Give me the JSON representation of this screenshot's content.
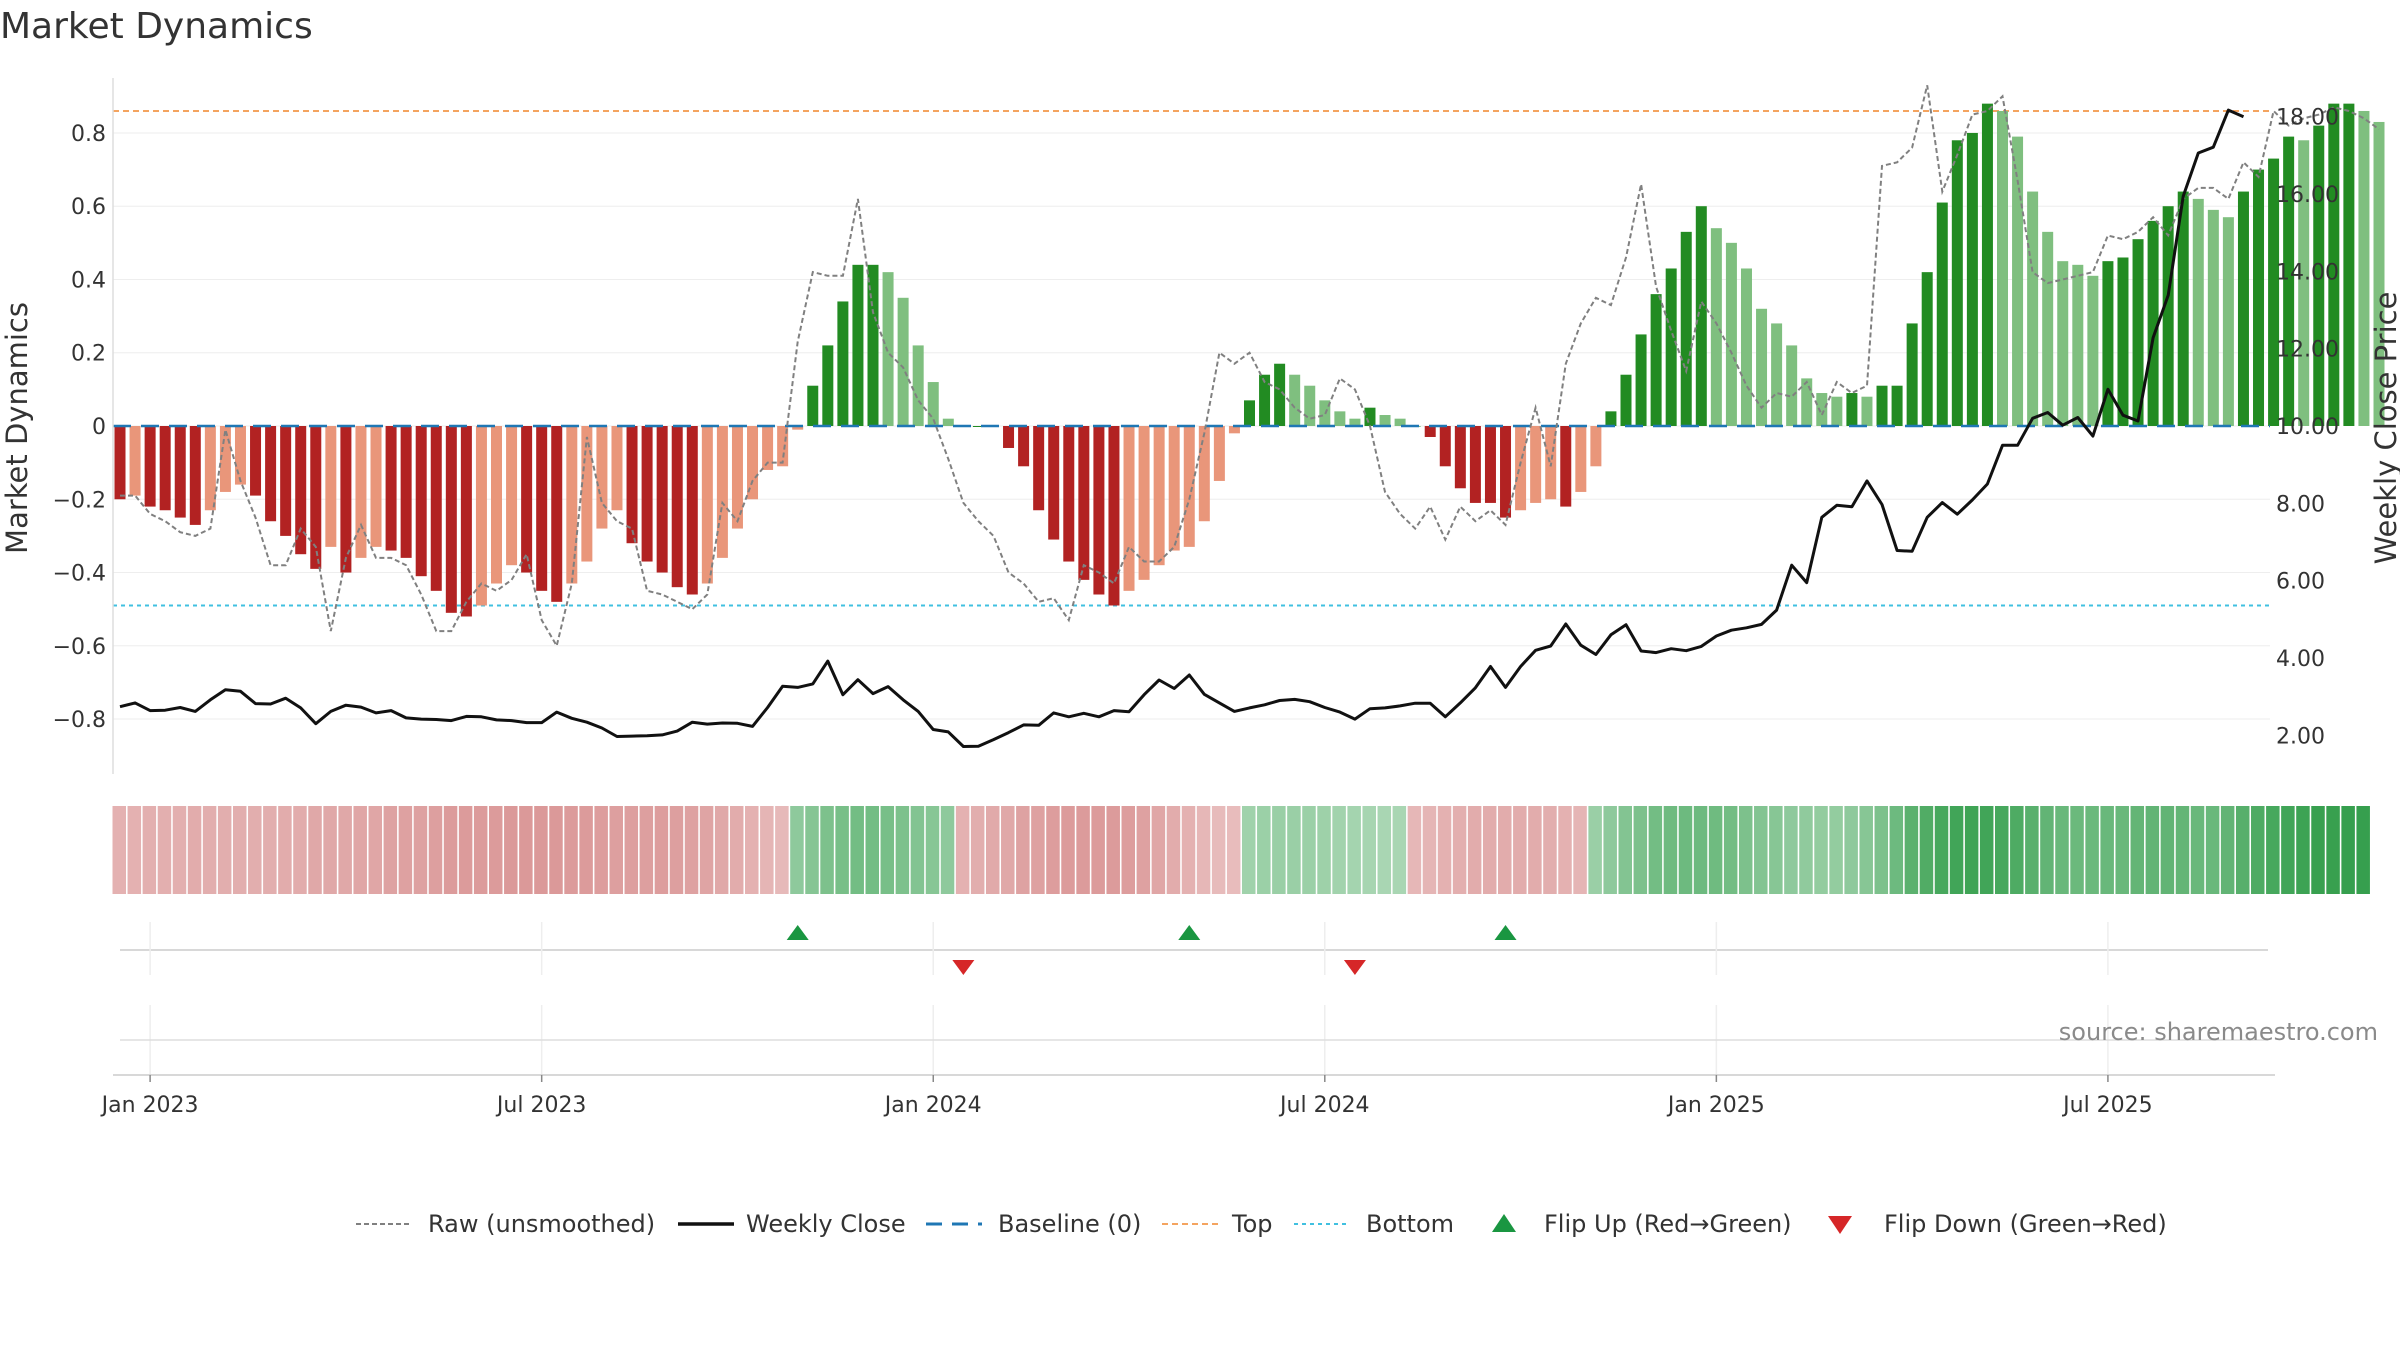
{
  "chart_data": {
    "type": "bar",
    "title": "Market Dynamics",
    "ylabel_left": "Market Dynamics",
    "ylabel_right": "Weekly Close Price",
    "ylim_left": [
      -0.95,
      0.95
    ],
    "ylim_right": [
      1.0,
      19.0
    ],
    "yticks_left": [
      {
        "v": 0.8,
        "label": "0.8"
      },
      {
        "v": 0.6,
        "label": "0.6"
      },
      {
        "v": 0.4,
        "label": "0.4"
      },
      {
        "v": 0.2,
        "label": "0.2"
      },
      {
        "v": 0.0,
        "label": "0"
      },
      {
        "v": -0.2,
        "label": "−0.2"
      },
      {
        "v": -0.4,
        "label": "−0.4"
      },
      {
        "v": -0.6,
        "label": "−0.6"
      },
      {
        "v": -0.8,
        "label": "−0.8"
      }
    ],
    "yticks_right": [
      {
        "v": 18,
        "label": "18.00"
      },
      {
        "v": 16,
        "label": "16.00"
      },
      {
        "v": 14,
        "label": "14.00"
      },
      {
        "v": 12,
        "label": "12.00"
      },
      {
        "v": 10,
        "label": "10.00"
      },
      {
        "v": 8,
        "label": "8.00"
      },
      {
        "v": 6,
        "label": "6.00"
      },
      {
        "v": 4,
        "label": "4.00"
      },
      {
        "v": 2,
        "label": "2.00"
      }
    ],
    "xticks": [
      {
        "week": 2,
        "label": "Jan 2023"
      },
      {
        "week": 28,
        "label": "Jul 2023"
      },
      {
        "week": 54,
        "label": "Jan 2024"
      },
      {
        "week": 80,
        "label": "Jul 2024"
      },
      {
        "week": 106,
        "label": "Jan 2025"
      },
      {
        "week": 132,
        "label": "Jul 2025"
      }
    ],
    "top_threshold": 0.86,
    "bottom_threshold": -0.49,
    "baseline": 0,
    "colors": {
      "strong_up": "#228B22",
      "weak_up": "#7FBF7F",
      "strong_down": "#B22222",
      "weak_down": "#E9967A",
      "raw": "#808080",
      "close": "#111111",
      "baseline": "#1f77b4",
      "top": "#f4a460",
      "bottom": "#40c0e0",
      "flip_up": "#1a9641",
      "flip_down": "#d62728"
    },
    "dynamics": [
      -0.2,
      -0.19,
      -0.22,
      -0.23,
      -0.25,
      -0.27,
      -0.23,
      -0.18,
      -0.16,
      -0.19,
      -0.26,
      -0.3,
      -0.35,
      -0.39,
      -0.33,
      -0.4,
      -0.36,
      -0.33,
      -0.34,
      -0.36,
      -0.41,
      -0.45,
      -0.51,
      -0.52,
      -0.49,
      -0.43,
      -0.38,
      -0.4,
      -0.45,
      -0.48,
      -0.43,
      -0.37,
      -0.28,
      -0.23,
      -0.32,
      -0.37,
      -0.4,
      -0.44,
      -0.46,
      -0.43,
      -0.36,
      -0.28,
      -0.2,
      -0.12,
      -0.11,
      -0.01,
      0.11,
      0.22,
      0.34,
      0.44,
      0.44,
      0.42,
      0.35,
      0.22,
      0.12,
      0.02,
      0.0,
      0.0,
      0.0,
      -0.06,
      -0.11,
      -0.23,
      -0.31,
      -0.37,
      -0.42,
      -0.46,
      -0.49,
      -0.45,
      -0.42,
      -0.38,
      -0.34,
      -0.33,
      -0.26,
      -0.15,
      -0.02,
      0.07,
      0.14,
      0.17,
      0.14,
      0.11,
      0.07,
      0.04,
      0.02,
      0.05,
      0.03,
      0.02,
      0.0,
      -0.03,
      -0.11,
      -0.17,
      -0.21,
      -0.21,
      -0.25,
      -0.23,
      -0.21,
      -0.2,
      -0.22,
      -0.18,
      -0.11,
      0.04,
      0.14,
      0.25,
      0.36,
      0.43,
      0.53,
      0.6,
      0.54,
      0.5,
      0.43,
      0.32,
      0.28,
      0.22,
      0.13,
      0.09,
      0.08,
      0.09,
      0.08,
      0.11,
      0.11,
      0.28,
      0.42,
      0.61,
      0.78,
      0.8,
      0.88,
      0.86,
      0.79,
      0.64,
      0.53,
      0.45,
      0.44,
      0.41,
      0.45,
      0.46,
      0.51,
      0.56,
      0.6,
      0.64,
      0.62,
      0.59,
      0.57,
      0.64,
      0.7,
      0.73,
      0.79,
      0.78,
      0.82,
      0.88,
      0.88,
      0.86,
      0.83
    ],
    "raw": [
      -0.19,
      -0.19,
      -0.24,
      -0.26,
      -0.29,
      -0.3,
      -0.28,
      -0.01,
      -0.15,
      -0.25,
      -0.38,
      -0.38,
      -0.28,
      -0.33,
      -0.56,
      -0.36,
      -0.27,
      -0.36,
      -0.36,
      -0.38,
      -0.46,
      -0.56,
      -0.56,
      -0.48,
      -0.43,
      -0.45,
      -0.42,
      -0.35,
      -0.53,
      -0.6,
      -0.43,
      -0.03,
      -0.21,
      -0.26,
      -0.28,
      -0.45,
      -0.46,
      -0.48,
      -0.5,
      -0.46,
      -0.21,
      -0.26,
      -0.15,
      -0.1,
      -0.1,
      0.23,
      0.42,
      0.41,
      0.41,
      0.62,
      0.31,
      0.2,
      0.16,
      0.07,
      0.02,
      -0.09,
      -0.21,
      -0.26,
      -0.3,
      -0.4,
      -0.43,
      -0.48,
      -0.47,
      -0.53,
      -0.38,
      -0.4,
      -0.43,
      -0.33,
      -0.37,
      -0.37,
      -0.33,
      -0.2,
      -0.02,
      0.2,
      0.17,
      0.2,
      0.12,
      0.1,
      0.05,
      0.02,
      0.03,
      0.13,
      0.1,
      0.0,
      -0.18,
      -0.24,
      -0.28,
      -0.22,
      -0.31,
      -0.22,
      -0.26,
      -0.23,
      -0.27,
      -0.1,
      0.05,
      -0.11,
      0.17,
      0.28,
      0.35,
      0.33,
      0.46,
      0.66,
      0.38,
      0.26,
      0.15,
      0.34,
      0.28,
      0.2,
      0.11,
      0.05,
      0.09,
      0.08,
      0.12,
      0.03,
      0.12,
      0.09,
      0.11,
      0.71,
      0.72,
      0.76,
      0.93,
      0.64,
      0.74,
      0.85,
      0.86,
      0.9,
      0.67,
      0.42,
      0.39,
      0.4,
      0.41,
      0.42,
      0.52,
      0.51,
      0.53,
      0.57,
      0.52,
      0.62,
      0.65,
      0.65,
      0.62,
      0.72,
      0.68,
      0.86,
      0.82,
      0.84,
      0.85,
      0.87,
      0.86,
      0.84,
      0.81
    ],
    "close": [
      2.74,
      2.84,
      2.64,
      2.65,
      2.72,
      2.62,
      2.92,
      3.18,
      3.14,
      2.82,
      2.81,
      2.96,
      2.71,
      2.3,
      2.62,
      2.78,
      2.73,
      2.58,
      2.64,
      2.45,
      2.42,
      2.41,
      2.38,
      2.49,
      2.48,
      2.4,
      2.38,
      2.33,
      2.33,
      2.6,
      2.44,
      2.34,
      2.19,
      1.97,
      1.98,
      1.99,
      2.01,
      2.11,
      2.34,
      2.29,
      2.32,
      2.31,
      2.23,
      2.72,
      3.27,
      3.24,
      3.33,
      3.92,
      3.05,
      3.44,
      3.08,
      3.26,
      2.92,
      2.62,
      2.15,
      2.09,
      1.71,
      1.72,
      1.89,
      2.07,
      2.27,
      2.26,
      2.58,
      2.48,
      2.57,
      2.48,
      2.64,
      2.61,
      3.05,
      3.43,
      3.21,
      3.56,
      3.06,
      2.84,
      2.62,
      2.71,
      2.79,
      2.9,
      2.93,
      2.87,
      2.72,
      2.6,
      2.42,
      2.69,
      2.71,
      2.76,
      2.83,
      2.83,
      2.48,
      2.84,
      3.23,
      3.78,
      3.24,
      3.78,
      4.2,
      4.31,
      4.88,
      4.33,
      4.09,
      4.6,
      4.86,
      4.18,
      4.14,
      4.24,
      4.19,
      4.3,
      4.57,
      4.72,
      4.78,
      4.87,
      5.24,
      6.4,
      5.95,
      7.64,
      7.95,
      7.91,
      8.58,
      7.97,
      6.78,
      6.76,
      7.64,
      8.02,
      7.72,
      8.09,
      8.5,
      9.5,
      9.5,
      10.2,
      10.35,
      10.02,
      10.22,
      9.74,
      10.95,
      10.28,
      10.13,
      12.28,
      13.38,
      15.94,
      17.06,
      17.21,
      18.17,
      18.0
    ],
    "ribbon": [
      -0.22,
      -0.23,
      -0.24,
      -0.24,
      -0.24,
      -0.26,
      -0.25,
      -0.25,
      -0.25,
      -0.25,
      -0.25,
      -0.26,
      -0.27,
      -0.29,
      -0.29,
      -0.3,
      -0.31,
      -0.31,
      -0.33,
      -0.34,
      -0.35,
      -0.36,
      -0.38,
      -0.38,
      -0.38,
      -0.39,
      -0.4,
      -0.4,
      -0.4,
      -0.4,
      -0.39,
      -0.38,
      -0.37,
      -0.36,
      -0.36,
      -0.36,
      -0.37,
      -0.36,
      -0.34,
      -0.32,
      -0.29,
      -0.26,
      -0.23,
      -0.2,
      -0.17,
      0.35,
      0.4,
      0.45,
      0.48,
      0.5,
      0.5,
      0.48,
      0.45,
      0.42,
      0.38,
      0.35,
      -0.22,
      -0.25,
      -0.28,
      -0.3,
      -0.33,
      -0.35,
      -0.37,
      -0.38,
      -0.39,
      -0.39,
      -0.38,
      -0.37,
      -0.35,
      -0.31,
      -0.27,
      -0.22,
      -0.18,
      -0.16,
      -0.15,
      0.24,
      0.26,
      0.28,
      0.28,
      0.27,
      0.25,
      0.23,
      0.21,
      0.2,
      0.19,
      0.19,
      -0.19,
      -0.2,
      -0.22,
      -0.24,
      -0.26,
      -0.27,
      -0.27,
      -0.27,
      -0.26,
      -0.25,
      -0.23,
      -0.2,
      0.28,
      0.35,
      0.42,
      0.46,
      0.5,
      0.53,
      0.55,
      0.55,
      0.53,
      0.5,
      0.45,
      0.41,
      0.38,
      0.35,
      0.33,
      0.32,
      0.32,
      0.34,
      0.38,
      0.45,
      0.55,
      0.65,
      0.72,
      0.78,
      0.82,
      0.83,
      0.82,
      0.78,
      0.73,
      0.67,
      0.62,
      0.58,
      0.56,
      0.56,
      0.57,
      0.58,
      0.6,
      0.62,
      0.62,
      0.6,
      0.58,
      0.58,
      0.62,
      0.68,
      0.73,
      0.78,
      0.81,
      0.84,
      0.86,
      0.87,
      0.88,
      0.88
    ],
    "flips_up": [
      45,
      71,
      92
    ],
    "flips_down": [
      56,
      82
    ],
    "legend": [
      {
        "type": "raw",
        "label": "Raw (unsmoothed)"
      },
      {
        "type": "close",
        "label": "Weekly Close"
      },
      {
        "type": "baseline",
        "label": "Baseline (0)"
      },
      {
        "type": "top",
        "label": "Top"
      },
      {
        "type": "bottom",
        "label": "Bottom"
      },
      {
        "type": "flip_up",
        "label": "Flip Up (Red→Green)"
      },
      {
        "type": "flip_down",
        "label": "Flip Down (Green→Red)"
      }
    ],
    "source": "source: sharemaestro.com"
  }
}
